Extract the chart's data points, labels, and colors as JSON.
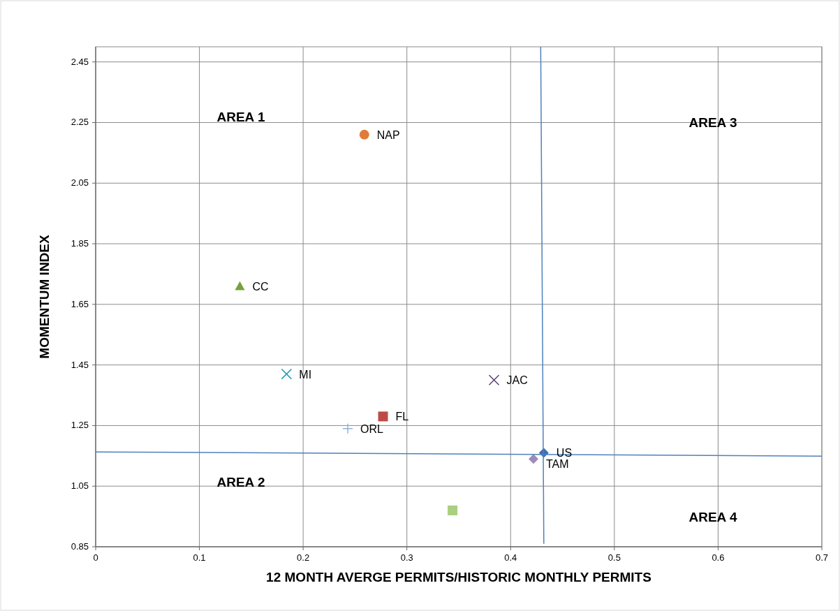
{
  "chart_data": {
    "type": "scatter",
    "xlabel": "12 MONTH AVERGE PERMITS/HISTORIC MONTHLY PERMITS",
    "ylabel": "MOMENTUM INDEX",
    "xlim": [
      0,
      0.7
    ],
    "ylim": [
      0.85,
      2.5
    ],
    "xticks": [
      0,
      0.1,
      0.2,
      0.3,
      0.4,
      0.5,
      0.6,
      0.7
    ],
    "yticks": [
      0.85,
      1.05,
      1.25,
      1.45,
      1.65,
      1.85,
      2.05,
      2.25,
      2.45
    ],
    "grid": true,
    "annotations": [
      "AREA 1",
      "AREA 2",
      "AREA 3",
      "AREA 4"
    ],
    "series": [
      {
        "name": "NAP",
        "color": "#e07b39",
        "marker": "circle",
        "x": [
          0.259
        ],
        "values": [
          2.21
        ]
      },
      {
        "name": "CC",
        "color": "#77a03c",
        "marker": "triangle",
        "x": [
          0.139
        ],
        "values": [
          1.71
        ]
      },
      {
        "name": "MI",
        "color": "#2e9ab0",
        "marker": "cross",
        "x": [
          0.184
        ],
        "values": [
          1.42
        ]
      },
      {
        "name": "JAC",
        "color": "#5b3f7a",
        "marker": "cross",
        "x": [
          0.384
        ],
        "values": [
          1.4
        ]
      },
      {
        "name": "FL",
        "color": "#be4b48",
        "marker": "square",
        "x": [
          0.277
        ],
        "values": [
          1.28
        ]
      },
      {
        "name": "ORL",
        "color": "#8fb3e0",
        "marker": "plus",
        "x": [
          0.243
        ],
        "values": [
          1.24
        ]
      },
      {
        "name": "US",
        "color": "#3f6fb5",
        "marker": "diamond",
        "x": [
          0.432
        ],
        "values": [
          1.16
        ]
      },
      {
        "name": "TAM",
        "color": "#9d8bb8",
        "marker": "diamond",
        "x": [
          0.422
        ],
        "values": [
          1.14
        ]
      },
      {
        "color": "#a9cf7f",
        "marker": "square",
        "x": [
          0.344
        ],
        "values": [
          0.97
        ]
      },
      {
        "type": "line",
        "color": "#4f81bd",
        "x": [
          0.429,
          0.432
        ],
        "values": [
          2.5,
          0.86
        ]
      },
      {
        "type": "line",
        "color": "#4f81bd",
        "x": [
          0,
          0.7
        ],
        "values": [
          1.163,
          1.149
        ]
      }
    ]
  }
}
